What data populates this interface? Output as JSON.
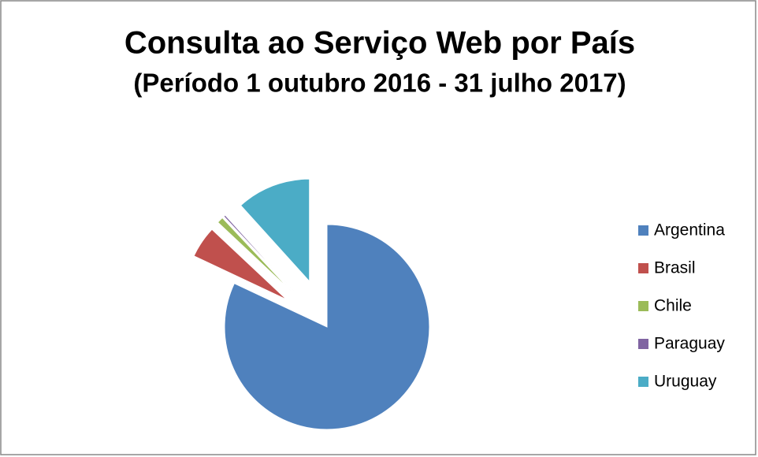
{
  "chart_data": {
    "type": "pie",
    "title": "Consulta ao Serviço Web por País",
    "subtitle": "(Período 1 outubro 2016 - 31 julho 2017)",
    "categories": [
      "Argentina",
      "Brasil",
      "Chile",
      "Paraguay",
      "Uruguay"
    ],
    "values": [
      82,
      5,
      1,
      0.3,
      11.7
    ],
    "colors": [
      "#4f81bd",
      "#c0504d",
      "#9bbb59",
      "#8064a2",
      "#4bacc6"
    ],
    "legend": "right"
  }
}
